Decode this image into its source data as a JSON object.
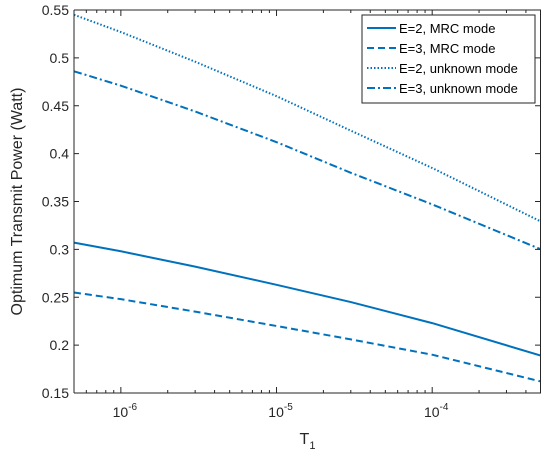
{
  "chart_data": {
    "type": "line",
    "xlabel": "T",
    "xlabel_subscript": "1",
    "ylabel": "Optimum Transmit Power (Watt)",
    "x_scale": "log",
    "xlim": [
      5e-07,
      0.0005
    ],
    "ylim": [
      0.15,
      0.55
    ],
    "x_ticks": [
      {
        "value": 1e-06,
        "base": "10",
        "exp": "-6"
      },
      {
        "value": 1e-05,
        "base": "10",
        "exp": "-5"
      },
      {
        "value": 0.0001,
        "base": "10",
        "exp": "-4"
      }
    ],
    "y_ticks": [
      {
        "value": 0.15,
        "label": "0.15"
      },
      {
        "value": 0.2,
        "label": "0.2"
      },
      {
        "value": 0.25,
        "label": "0.25"
      },
      {
        "value": 0.3,
        "label": "0.3"
      },
      {
        "value": 0.35,
        "label": "0.35"
      },
      {
        "value": 0.4,
        "label": "0.4"
      },
      {
        "value": 0.45,
        "label": "0.45"
      },
      {
        "value": 0.5,
        "label": "0.5"
      },
      {
        "value": 0.55,
        "label": "0.55"
      }
    ],
    "grid": false,
    "legend_position": "top-right",
    "series": [
      {
        "name": "E=2, MRC mode",
        "style": "solid",
        "color": "#0072BD",
        "x": [
          5e-07,
          1e-06,
          3e-06,
          1e-05,
          3e-05,
          0.0001,
          0.0005
        ],
        "y": [
          0.307,
          0.298,
          0.282,
          0.263,
          0.245,
          0.223,
          0.189
        ]
      },
      {
        "name": "E=3, MRC mode",
        "style": "dashed",
        "color": "#0072BD",
        "x": [
          5e-07,
          1e-06,
          3e-06,
          1e-05,
          3e-05,
          0.0001,
          0.0005
        ],
        "y": [
          0.255,
          0.248,
          0.235,
          0.22,
          0.206,
          0.19,
          0.162
        ]
      },
      {
        "name": "E=2, unknown mode",
        "style": "dotted",
        "color": "#0072BD",
        "x": [
          5e-07,
          1e-06,
          3e-06,
          1e-05,
          3e-05,
          0.0001,
          0.0005
        ],
        "y": [
          0.545,
          0.527,
          0.496,
          0.46,
          0.424,
          0.385,
          0.329
        ]
      },
      {
        "name": "E=3, unknown mode",
        "style": "dashdot",
        "color": "#0072BD",
        "x": [
          5e-07,
          1e-06,
          3e-06,
          1e-05,
          3e-05,
          0.0001,
          0.0005
        ],
        "y": [
          0.486,
          0.471,
          0.444,
          0.412,
          0.38,
          0.347,
          0.3
        ]
      }
    ]
  }
}
